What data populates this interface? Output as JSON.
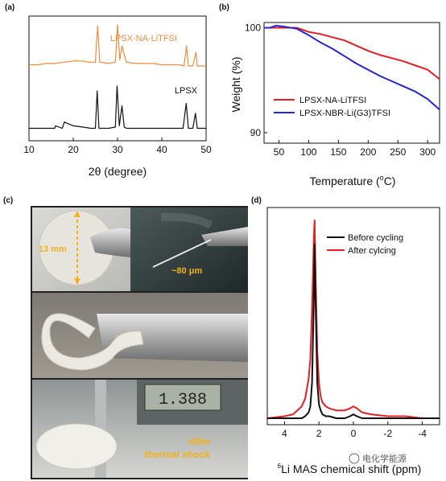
{
  "panels": {
    "a": "(a)",
    "b": "(b)",
    "c": "(c)",
    "d": "(d)"
  },
  "colors": {
    "orange": "#f08a3c",
    "black": "#111111",
    "red": "#e31e24",
    "blue": "#2424d8",
    "photo_text": "#f3b21c"
  },
  "chart_data": [
    {
      "panel": "a",
      "type": "line",
      "xlabel": "2θ (degree)",
      "ylabel": "",
      "xlim": [
        10,
        50
      ],
      "xticks": [
        10,
        20,
        30,
        40,
        50
      ],
      "series": [
        {
          "name": "LPSX-NA-LiTFSI",
          "color": "#f08a3c",
          "x": [
            10,
            12,
            14,
            16,
            18,
            20,
            22,
            23.5,
            25,
            25.5,
            26,
            28,
            29.5,
            30,
            30.5,
            31,
            32,
            34,
            36,
            38,
            40,
            42,
            44,
            45,
            45.6,
            46,
            47,
            47.7,
            48,
            50
          ],
          "y": [
            0.61,
            0.61,
            0.62,
            0.62,
            0.63,
            0.64,
            0.64,
            0.63,
            0.63,
            0.92,
            0.63,
            0.62,
            0.63,
            0.93,
            0.65,
            0.76,
            0.63,
            0.62,
            0.62,
            0.62,
            0.61,
            0.61,
            0.61,
            0.6,
            0.76,
            0.6,
            0.6,
            0.71,
            0.6,
            0.6
          ]
        },
        {
          "name": "LPSX",
          "color": "#111111",
          "x": [
            10,
            12,
            14,
            15.8,
            16,
            17.5,
            18,
            20,
            22,
            24,
            25,
            25.4,
            25.8,
            28,
            29.5,
            29.9,
            30.4,
            31,
            31.5,
            32,
            34,
            36,
            38,
            40,
            42,
            44,
            44.8,
            45.5,
            46,
            47,
            47.6,
            48,
            50
          ],
          "y": [
            0.1,
            0.1,
            0.1,
            0.1,
            0.12,
            0.1,
            0.15,
            0.12,
            0.11,
            0.1,
            0.1,
            0.4,
            0.1,
            0.1,
            0.11,
            0.44,
            0.12,
            0.28,
            0.11,
            0.1,
            0.1,
            0.1,
            0.1,
            0.1,
            0.1,
            0.1,
            0.1,
            0.3,
            0.1,
            0.1,
            0.22,
            0.1,
            0.1
          ]
        }
      ]
    },
    {
      "panel": "b",
      "type": "line",
      "xlabel": "Temperature (",
      "xlabel_unit": "o",
      "xlabel_end": "C)",
      "ylabel": "Weight (%)",
      "xlim": [
        25,
        320
      ],
      "ylim": [
        89,
        100.5
      ],
      "xticks": [
        50,
        100,
        150,
        200,
        250,
        300
      ],
      "yticks": [
        90,
        100
      ],
      "legend_position": "lower-left",
      "series": [
        {
          "name": "LPSX-NA-LiTFSI",
          "color": "#e31e24",
          "x": [
            25,
            40,
            60,
            80,
            100,
            120,
            140,
            160,
            180,
            200,
            220,
            240,
            260,
            280,
            300,
            320
          ],
          "y": [
            100,
            100,
            100,
            100,
            99.6,
            99.4,
            99.1,
            98.8,
            98.3,
            97.8,
            97.4,
            97.1,
            96.8,
            96.4,
            96.0,
            95.1
          ]
        },
        {
          "name": "LPSX-NBR-Li(G3)TFSI",
          "color": "#2424d8",
          "x": [
            25,
            35,
            45,
            60,
            80,
            100,
            120,
            140,
            160,
            180,
            200,
            220,
            240,
            260,
            280,
            300,
            320
          ],
          "y": [
            100,
            100,
            100.2,
            100.1,
            99.9,
            99.3,
            98.6,
            98.0,
            97.3,
            96.6,
            96.0,
            95.4,
            94.9,
            94.4,
            93.9,
            93.2,
            92.2
          ]
        }
      ]
    },
    {
      "panel": "d",
      "type": "line",
      "xlabel_sup": "6",
      "xlabel": "Li MAS chemical shift (ppm)",
      "xlim": [
        5,
        -5
      ],
      "xticks": [
        4,
        2,
        0,
        -2,
        -4
      ],
      "series": [
        {
          "name": "Before cycling",
          "color": "#111111",
          "x": [
            5,
            4,
            3.5,
            3,
            2.8,
            2.6,
            2.5,
            2.4,
            2.3,
            2.25,
            2.2,
            2.1,
            2.0,
            1.9,
            1.8,
            1.6,
            1.4,
            1.0,
            0.5,
            0.2,
            0,
            -0.2,
            -0.5,
            -1,
            -2,
            -3,
            -4,
            -5
          ],
          "y": [
            0.0,
            0.0,
            0.0,
            0.0,
            0.01,
            0.03,
            0.06,
            0.18,
            0.6,
            0.88,
            0.6,
            0.18,
            0.07,
            0.04,
            0.02,
            0.01,
            0.01,
            0.0,
            0.0,
            0.01,
            0.02,
            0.01,
            0.0,
            0.0,
            0.0,
            0.0,
            0.0,
            0.0
          ]
        },
        {
          "name": "After cylcing",
          "color": "#e31e24",
          "x": [
            5,
            4,
            3.5,
            3,
            2.8,
            2.6,
            2.5,
            2.4,
            2.3,
            2.25,
            2.2,
            2.1,
            2.0,
            1.9,
            1.8,
            1.6,
            1.4,
            1.0,
            0.5,
            0.2,
            0,
            -0.2,
            -0.5,
            -1,
            -2,
            -3,
            -4,
            -5
          ],
          "y": [
            0.0,
            0.01,
            0.02,
            0.06,
            0.1,
            0.2,
            0.3,
            0.55,
            0.9,
            1.0,
            0.75,
            0.34,
            0.18,
            0.11,
            0.08,
            0.06,
            0.05,
            0.04,
            0.04,
            0.05,
            0.06,
            0.05,
            0.03,
            0.02,
            0.01,
            0.01,
            0.0,
            0.0
          ]
        }
      ]
    }
  ],
  "photos": {
    "diameter_label": "13 mm",
    "thickness_label": "~80 μm",
    "caliper_reading": "1.388",
    "thermal_line1": "After",
    "thermal_line2": "thermal shock"
  },
  "watermark": "电化学能源"
}
